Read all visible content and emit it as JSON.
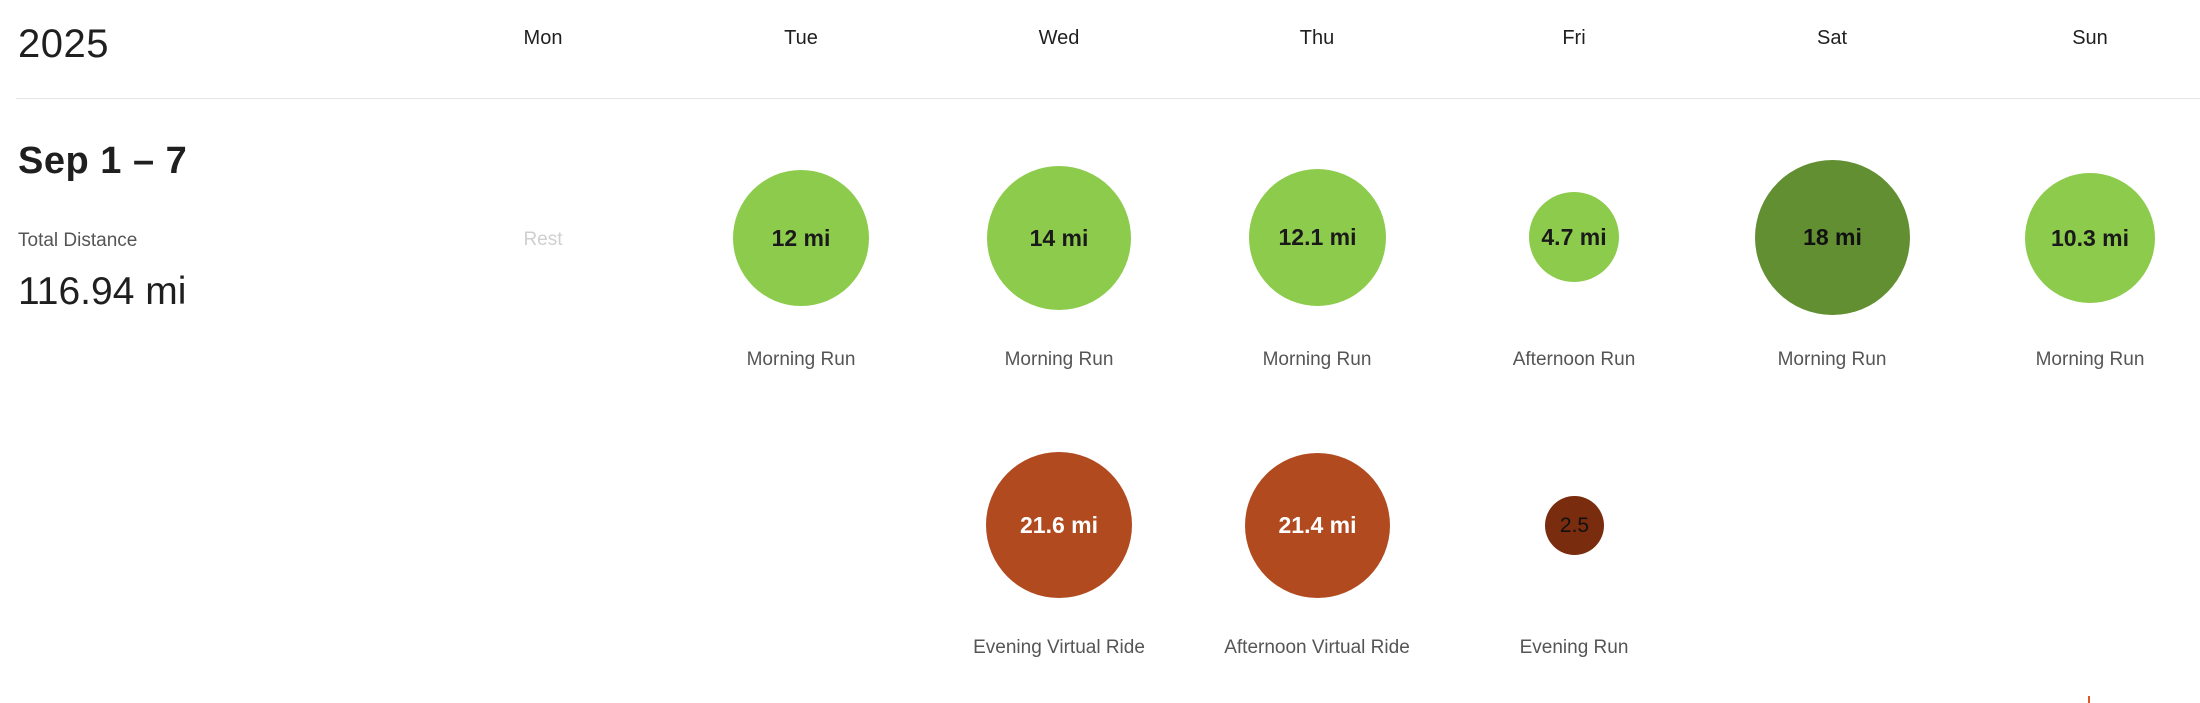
{
  "calendar": {
    "year": "2025",
    "days": [
      "Mon",
      "Tue",
      "Wed",
      "Thu",
      "Fri",
      "Sat",
      "Sun"
    ]
  },
  "week": {
    "title": "Sep 1 – 7",
    "total_label": "Total Distance",
    "total_value": "116.94 mi",
    "rest_label": "Rest"
  },
  "activities": {
    "tue_run": {
      "distance": "12 mi",
      "name": "Morning Run"
    },
    "wed_run": {
      "distance": "14 mi",
      "name": "Morning Run"
    },
    "thu_run": {
      "distance": "12.1 mi",
      "name": "Morning Run"
    },
    "fri_run": {
      "distance": "4.7 mi",
      "name": "Afternoon Run"
    },
    "sat_run": {
      "distance": "18 mi",
      "name": "Morning Run"
    },
    "sun_run": {
      "distance": "10.3 mi",
      "name": "Morning Run"
    },
    "wed_ride": {
      "distance": "21.6 mi",
      "name": "Evening Virtual Ride"
    },
    "thu_ride": {
      "distance": "21.4 mi",
      "name": "Afternoon Virtual Ride"
    },
    "fri_evening_run": {
      "distance": "2.5",
      "name": "Evening Run"
    }
  },
  "colors": {
    "run": "#8dcb4c",
    "run_long": "#628f32",
    "ride": "#b14a1f",
    "run_short": "#7a2c0e"
  }
}
